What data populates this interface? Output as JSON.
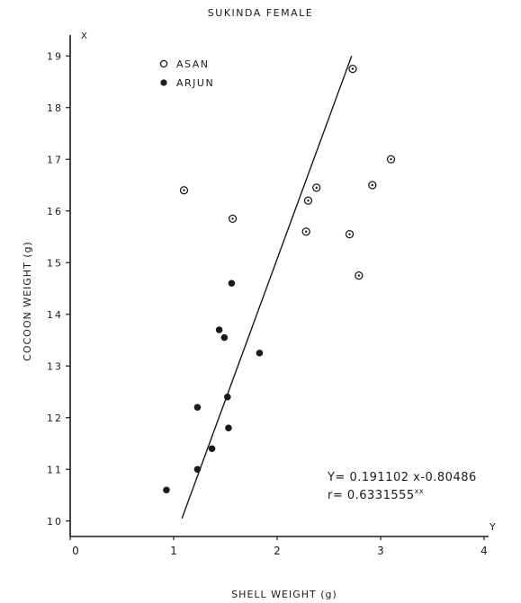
{
  "chart_data": {
    "type": "scatter",
    "title": "SUKINDA FEMALE",
    "xlabel": "SHELL WEIGHT (g)",
    "ylabel": "COCOON WEIGHT (g)",
    "x_axis_letter": "Y",
    "y_axis_letter": "X",
    "xlim": [
      0,
      4
    ],
    "ylim": [
      9.7,
      19.3
    ],
    "x_ticks": [
      {
        "value": 0,
        "label": "0"
      },
      {
        "value": 1,
        "label": "1"
      },
      {
        "value": 2,
        "label": "2"
      },
      {
        "value": 3,
        "label": "3"
      },
      {
        "value": 4,
        "label": "4"
      }
    ],
    "y_ticks": [
      {
        "value": 10,
        "label": "10"
      },
      {
        "value": 11,
        "label": "11"
      },
      {
        "value": 12,
        "label": "12"
      },
      {
        "value": 13,
        "label": "13"
      },
      {
        "value": 14,
        "label": "14"
      },
      {
        "value": 15,
        "label": "15"
      },
      {
        "value": 16,
        "label": "16"
      },
      {
        "value": 17,
        "label": "17"
      },
      {
        "value": 18,
        "label": "18"
      },
      {
        "value": 19,
        "label": "19"
      }
    ],
    "legend_placement": "top-left",
    "series": [
      {
        "name": "ASAN",
        "marker": "open-circle",
        "color": "#1a1a1a",
        "points": [
          {
            "x": 2.73,
            "y": 18.75
          },
          {
            "x": 3.1,
            "y": 17.0
          },
          {
            "x": 1.1,
            "y": 16.4
          },
          {
            "x": 2.38,
            "y": 16.45
          },
          {
            "x": 2.92,
            "y": 16.5
          },
          {
            "x": 2.3,
            "y": 16.2
          },
          {
            "x": 1.57,
            "y": 15.85
          },
          {
            "x": 2.28,
            "y": 15.6
          },
          {
            "x": 2.7,
            "y": 15.55
          },
          {
            "x": 2.79,
            "y": 14.75
          }
        ]
      },
      {
        "name": "ARJUN",
        "marker": "filled-circle",
        "color": "#1a1a1a",
        "points": [
          {
            "x": 1.56,
            "y": 14.6
          },
          {
            "x": 1.44,
            "y": 13.7
          },
          {
            "x": 1.49,
            "y": 13.55
          },
          {
            "x": 1.83,
            "y": 13.25
          },
          {
            "x": 1.52,
            "y": 12.4
          },
          {
            "x": 1.23,
            "y": 12.2
          },
          {
            "x": 1.53,
            "y": 11.8
          },
          {
            "x": 1.37,
            "y": 11.4
          },
          {
            "x": 1.23,
            "y": 11.0
          },
          {
            "x": 0.93,
            "y": 10.6
          }
        ]
      }
    ],
    "regression_line": {
      "x1": 1.08,
      "y1": 10.05,
      "x2": 2.72,
      "y2": 19.0
    },
    "annotations": {
      "equation": "Y= 0.191102 x-0.80486",
      "correlation": "r= 0.6331555",
      "significance": "xx"
    }
  }
}
